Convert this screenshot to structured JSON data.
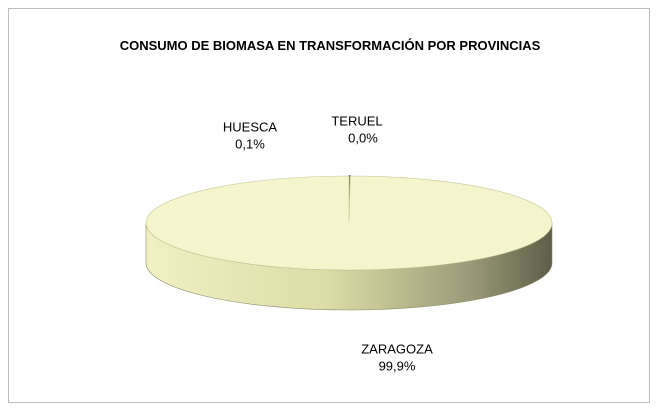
{
  "chart_data": {
    "type": "pie",
    "title": "CONSUMO DE BIOMASA EN TRANSFORMACIÓN POR PROVINCIAS",
    "categories": [
      "HUESCA",
      "TERUEL",
      "ZARAGOZA"
    ],
    "values": [
      0.1,
      0.0,
      99.9
    ],
    "value_labels": [
      "0,1%",
      "0,0%",
      "99,9%"
    ],
    "colors": [
      "#2b2b6b",
      "#7a7ab8",
      "#f5f5cd"
    ],
    "legend": false
  }
}
